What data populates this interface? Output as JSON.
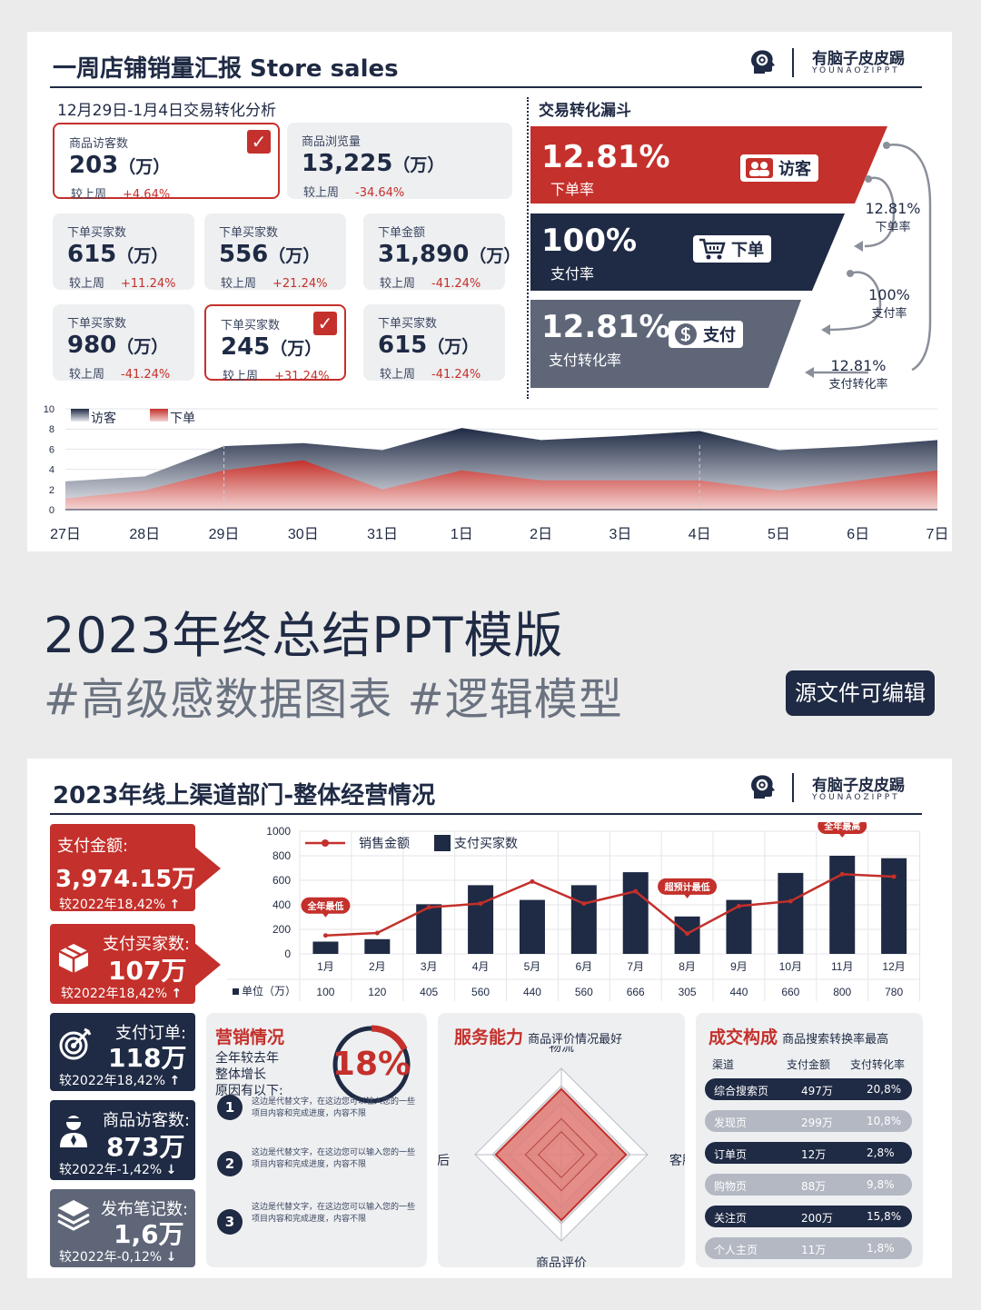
{
  "brand": {
    "cn": "有脑子皮皮踢",
    "en": "YOUNAOZIPPT"
  },
  "panel1": {
    "title": "一周店铺销量汇报 Store sales",
    "date_range": "12月29日-1月4日交易转化分析",
    "cards": [
      {
        "label": "商品访客数",
        "value": "203",
        "unit": "（万）",
        "cmp": "较上周",
        "change": "+4.64%",
        "checked": true
      },
      {
        "label": "商品浏览量",
        "value": "13,225",
        "unit": "（万）",
        "cmp": "较上周",
        "change": "-34.64%",
        "checked": false
      },
      {
        "label": "下单买家数",
        "value": "615",
        "unit": "（万）",
        "cmp": "较上周",
        "change": "+11.24%",
        "checked": false
      },
      {
        "label": "下单买家数",
        "value": "556",
        "unit": "（万）",
        "cmp": "较上周",
        "change": "+21.24%",
        "checked": false
      },
      {
        "label": "下单金额",
        "value": "31,890",
        "unit": "（万）",
        "cmp": "较上周",
        "change": "-41.24%",
        "checked": false
      },
      {
        "label": "下单买家数",
        "value": "980",
        "unit": "（万）",
        "cmp": "较上周",
        "change": "-41.24%",
        "checked": false
      },
      {
        "label": "下单买家数",
        "value": "245",
        "unit": "（万）",
        "cmp": "较上周",
        "change": "+31.24%",
        "checked": true
      },
      {
        "label": "下单买家数",
        "value": "615",
        "unit": "（万）",
        "cmp": "较上周",
        "change": "-41.24%",
        "checked": false
      }
    ],
    "funnel": {
      "title": "交易转化漏斗",
      "levels": [
        {
          "pct": "12.81%",
          "label": "下单率",
          "tag": "访客",
          "color": "#c4302b"
        },
        {
          "pct": "100%",
          "label": "支付率",
          "tag": "下单",
          "color": "#1f2a44"
        },
        {
          "pct": "12.81%",
          "label": "支付转化率",
          "tag": "支付",
          "color": "#5e6678"
        }
      ],
      "side": [
        {
          "pct": "12.81%",
          "label": "下单率"
        },
        {
          "pct": "100%",
          "label": "支付率"
        },
        {
          "pct": "12.81%",
          "label": "支付转化率"
        }
      ]
    }
  },
  "chart_data": [
    {
      "type": "area",
      "x": [
        "27日",
        "28日",
        "29日",
        "30日",
        "31日",
        "1日",
        "2日",
        "3日",
        "4日",
        "5日",
        "6日",
        "7日"
      ],
      "series": [
        {
          "name": "访客",
          "values": [
            2.8,
            3.3,
            6.3,
            6.6,
            5.9,
            8.1,
            6.9,
            7.3,
            7.8,
            5.9,
            6.3,
            6.9
          ],
          "color": "#1f2a44"
        },
        {
          "name": "下单",
          "values": [
            1.1,
            1.9,
            3.9,
            4.9,
            2.0,
            3.9,
            2.9,
            2.9,
            2.9,
            1.9,
            2.9,
            3.9
          ],
          "color": "#c4302b"
        }
      ],
      "ylim": [
        0,
        10
      ],
      "yticks": [
        0,
        2,
        4,
        6,
        8,
        10
      ],
      "grid": true,
      "legend": "top-left"
    },
    {
      "type": "bar",
      "categories": [
        "1月",
        "2月",
        "3月",
        "4月",
        "5月",
        "6月",
        "7月",
        "8月",
        "9月",
        "10月",
        "11月",
        "12月"
      ],
      "series": [
        {
          "name": "支付买家数",
          "type": "bar",
          "values": [
            100,
            120,
            405,
            560,
            440,
            560,
            666,
            305,
            440,
            660,
            800,
            780
          ],
          "color": "#1f2a44"
        },
        {
          "name": "销售金额",
          "type": "line",
          "values": [
            150,
            170,
            380,
            410,
            590,
            410,
            510,
            165,
            390,
            430,
            650,
            630
          ],
          "color": "#c4302b"
        }
      ],
      "ylim": [
        0,
        1000
      ],
      "yticks": [
        0,
        200,
        400,
        600,
        800,
        1000
      ],
      "table_label": "单位（万）",
      "annotations": [
        {
          "category": "1月",
          "text": "全年最低"
        },
        {
          "category": "8月",
          "text": "超预计最低"
        },
        {
          "category": "11月",
          "text": "全年最高"
        }
      ],
      "legend": "top-left",
      "grid": true
    },
    {
      "type": "radar",
      "axes": [
        "物流",
        "客服",
        "商品评价",
        "售后"
      ],
      "series": [
        {
          "name": "",
          "values": [
            0.76,
            0.75,
            0.76,
            0.76
          ],
          "color": "#c4302b"
        }
      ],
      "rmax": 1
    }
  ],
  "banner": {
    "headline": "2023年终总结PPT模版",
    "tagline": "#高级感数据图表 #逻辑模型",
    "editable": "源文件可编辑"
  },
  "panel2": {
    "title": "2023年线上渠道部门-整体经营情况",
    "kpis": [
      {
        "label": "支付金额:",
        "value": "3,974.15万",
        "cmp": "较2022年18,42%",
        "arrow": "↑",
        "color": "#c4302b",
        "icon": "none"
      },
      {
        "label": "支付买家数:",
        "value": "107万",
        "cmp": "较2022年18,42%",
        "arrow": "↑",
        "color": "#c4302b",
        "icon": "box-icon"
      },
      {
        "label": "支付订单:",
        "value": "118万",
        "cmp": "较2022年18,42%",
        "arrow": "↑",
        "color": "#1f2a44",
        "icon": "target-icon"
      },
      {
        "label": "商品访客数:",
        "value": "873万",
        "cmp": "较2022年-1,42%",
        "arrow": "↓",
        "color": "#1f2a44",
        "icon": "user-icon"
      },
      {
        "label": "发布笔记数:",
        "value": "1,6万",
        "cmp": "较2022年-0,12%",
        "arrow": "↓",
        "color": "#5e6678",
        "icon": "layers-icon"
      }
    ],
    "marketing": {
      "title": "营销情况",
      "desc": [
        "全年较去年",
        "整体增长",
        "原因有以下:"
      ],
      "pct": "18%",
      "pct_value": 18,
      "items": [
        {
          "n": "1",
          "text": "这边是代替文字，在这边您可以输入您的一些项目内容和完成进度，内容不限"
        },
        {
          "n": "2",
          "text": "这边是代替文字，在这边您可以输入您的一些项目内容和完成进度，内容不限"
        },
        {
          "n": "3",
          "text": "这边是代替文字，在这边您可以输入您的一些项目内容和完成进度，内容不限"
        }
      ]
    },
    "service": {
      "title": "服务能力",
      "subtitle": "商品评价情况最好"
    },
    "deals": {
      "title": "成交构成",
      "subtitle": "商品搜索转换率最高",
      "headers": [
        "渠道",
        "支付金额",
        "支付转化率"
      ],
      "rows": [
        {
          "channel": "综合搜索页",
          "amount": "497万",
          "rate": "20,8%",
          "color": "#1f2a44"
        },
        {
          "channel": "发现页",
          "amount": "299万",
          "rate": "10,8%",
          "color": "#b3b8c2"
        },
        {
          "channel": "订单页",
          "amount": "12万",
          "rate": "2,8%",
          "color": "#1f2a44"
        },
        {
          "channel": "购物页",
          "amount": "88万",
          "rate": "9,8%",
          "color": "#b3b8c2"
        },
        {
          "channel": "关注页",
          "amount": "200万",
          "rate": "15,8%",
          "color": "#1f2a44"
        },
        {
          "channel": "个人主页",
          "amount": "11万",
          "rate": "1,8%",
          "color": "#b3b8c2"
        }
      ]
    }
  }
}
